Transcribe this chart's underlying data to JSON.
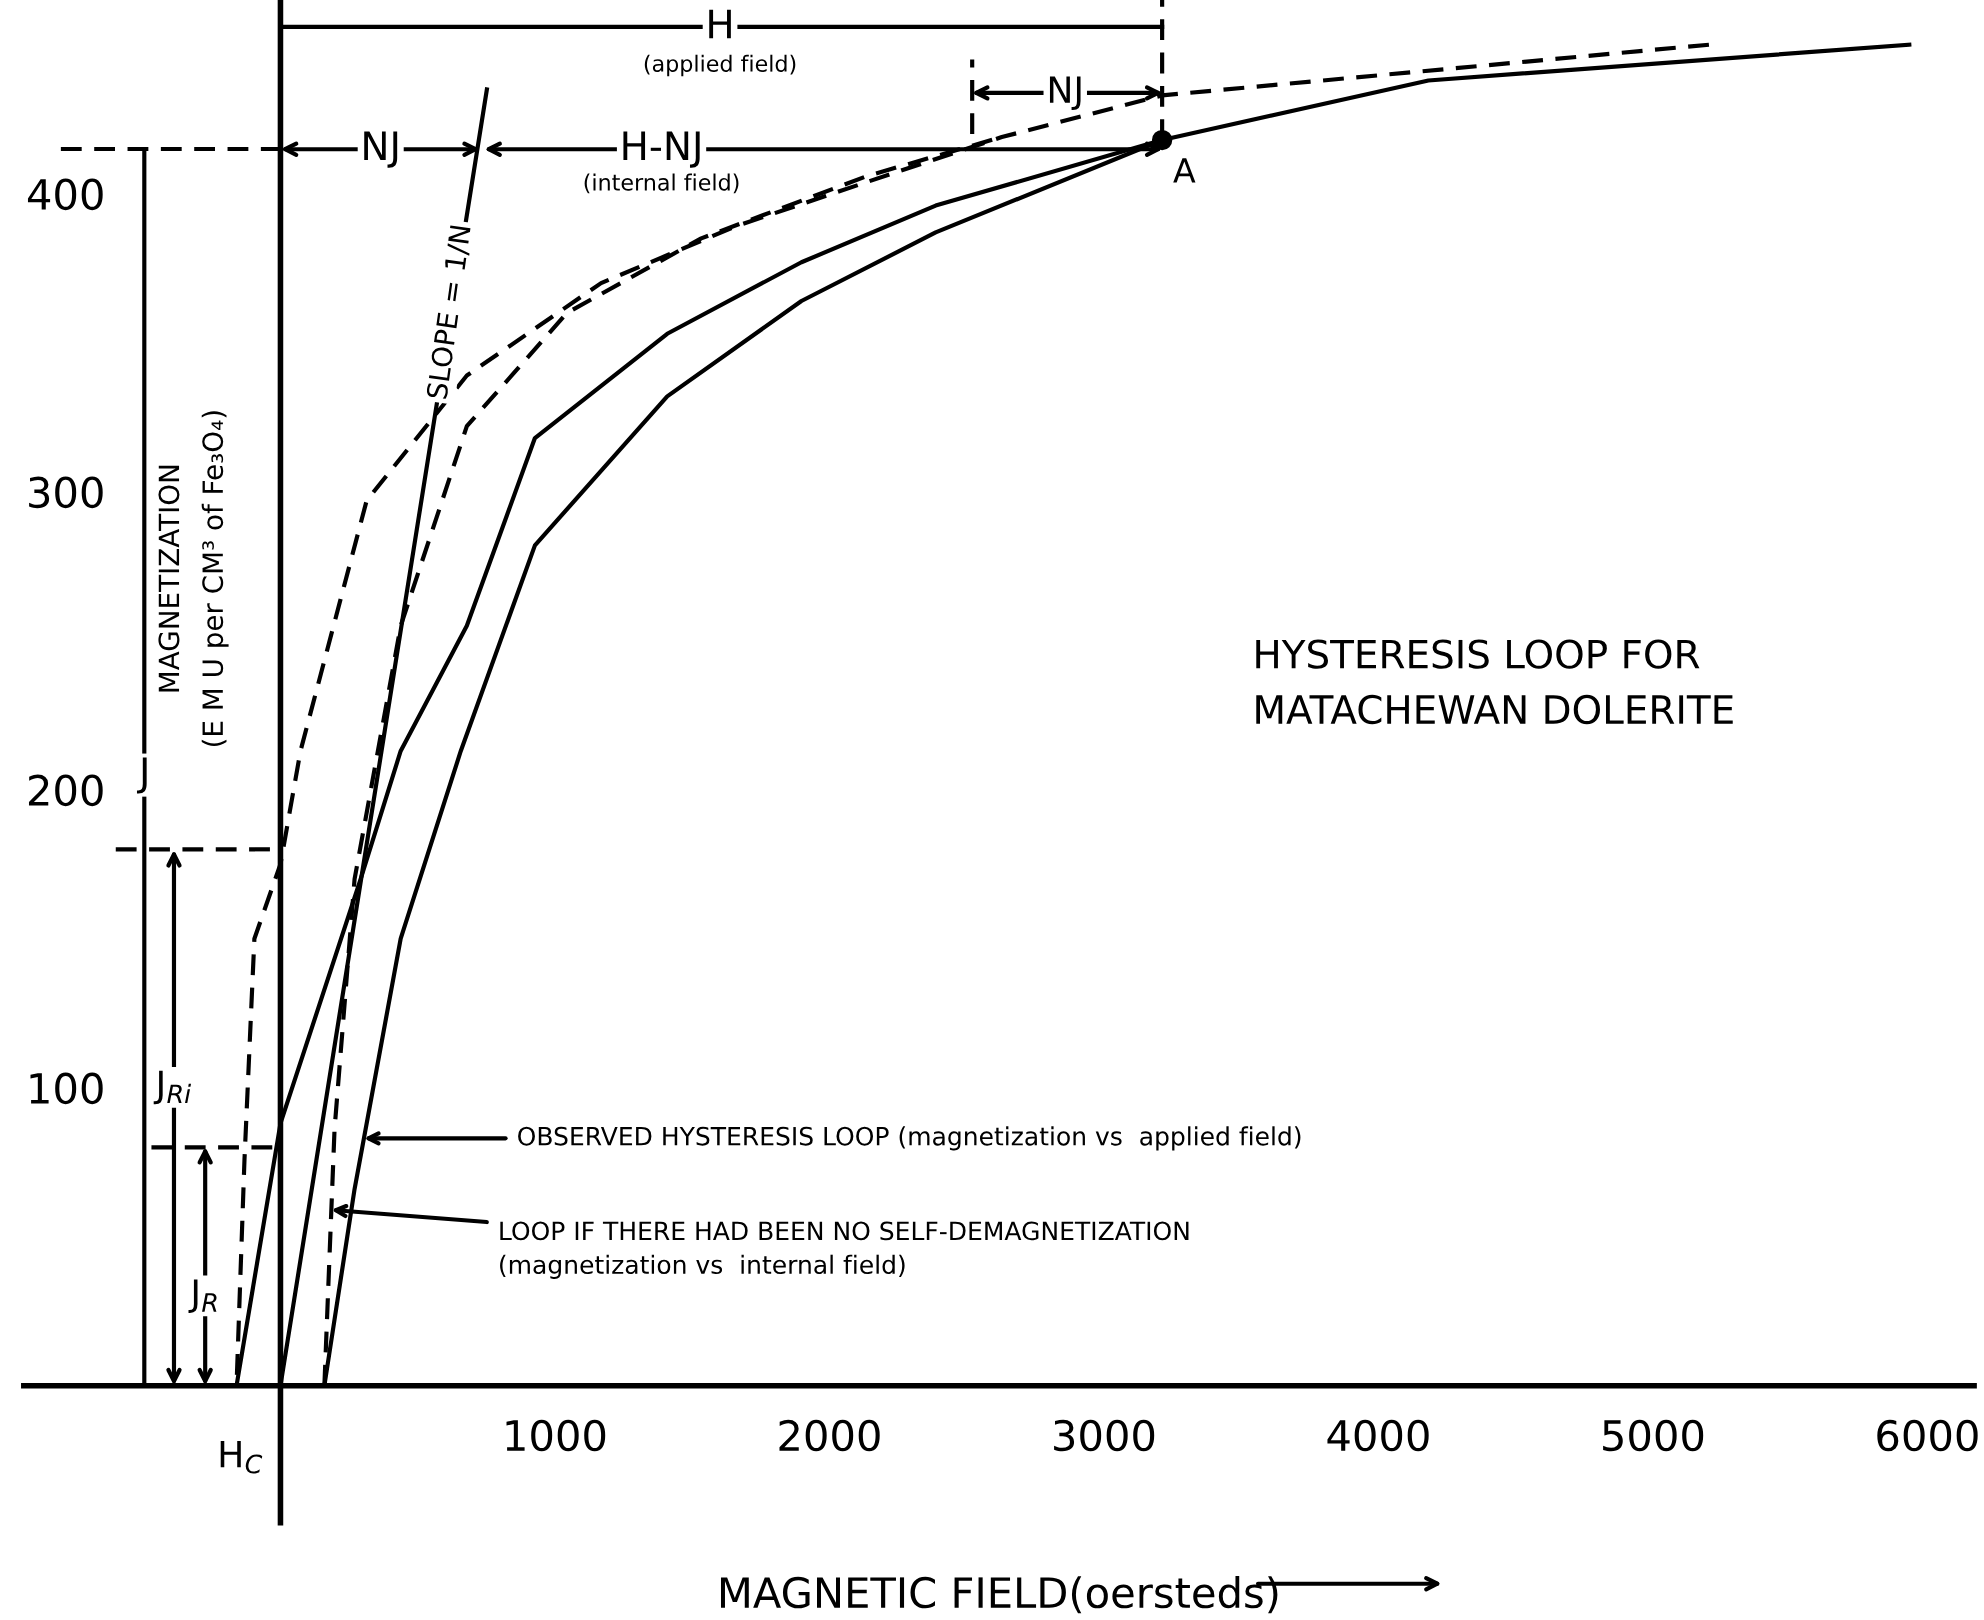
{
  "chart_data": {
    "type": "line",
    "title": "HYSTERESIS LOOP FOR\nMATACHEWAN DOLERITE",
    "xlabel": "MAGNETIC FIELD(oersteds)",
    "ylabel": "MAGNETIZATION\n(E M U per CM³ of Fe₃O₄)",
    "xlim": [
      -935,
      6170
    ],
    "ylim": [
      -46,
      465
    ],
    "xticks": [
      1000,
      2000,
      3000,
      4000,
      5000,
      6000
    ],
    "yticks": [
      100,
      200,
      300,
      400
    ],
    "grid": false,
    "legend": false,
    "series": [
      {
        "line_style": "solid",
        "color": "#000000",
        "x": [
          5934,
          4182,
          3212,
          2387,
          1898,
          1409,
          927,
          679,
          438,
          292,
          0,
          -160
        ],
        "values": [
          450,
          438,
          418,
          396,
          377,
          353,
          318,
          255,
          213,
          170,
          88,
          0
        ]
      },
      {
        "line_style": "solid",
        "color": "#000000",
        "x": [
          160,
          270,
          438,
          657,
          927,
          1409,
          1898,
          2387,
          3212
        ],
        "values": [
          0,
          66,
          150,
          213,
          282,
          332,
          364,
          387,
          418
        ]
      },
      {
        "line_style": "dashed",
        "color": "#000000",
        "x": [
          5204,
          3212,
          2628,
          2139,
          1657,
          1168,
          679,
          314,
          73,
          0,
          -95,
          -131,
          -160
        ],
        "values": [
          450,
          433,
          419,
          404,
          389,
          370,
          339,
          297,
          213,
          175,
          150,
          76,
          0
        ]
      },
      {
        "line_style": "dashed",
        "color": "#000000",
        "x": [
          160,
          197,
          270,
          438,
          679,
          1044,
          1533,
          2139,
          2628
        ],
        "values": [
          0,
          86,
          170,
          255,
          322,
          360,
          385,
          406,
          419
        ]
      },
      {
        "line_style": "solid",
        "color": "#000000",
        "x": [
          0,
          752
        ],
        "values": [
          0,
          435
        ]
      },
      {
        "type": "line",
        "line_style": "dashed",
        "color": "#000000",
        "x": [
          -800,
          0
        ],
        "values": [
          415,
          415
        ]
      },
      {
        "type": "line",
        "line_style": "solid",
        "color": "#000000",
        "x": [
          0,
          3212
        ],
        "values": [
          456,
          456
        ]
      },
      {
        "type": "line",
        "line_style": "solid",
        "color": "#000000",
        "x": [
          -496,
          -496
        ],
        "values": [
          0,
          415
        ]
      },
      {
        "type": "line",
        "line_style": "dashed",
        "color": "#000000",
        "x": [
          -600,
          0
        ],
        "values": [
          180,
          180
        ]
      },
      {
        "type": "line",
        "line_style": "dashed",
        "color": "#000000",
        "x": [
          -470,
          0
        ],
        "values": [
          80,
          80
        ]
      },
      {
        "type": "line",
        "line_style": "dashed",
        "color": "#000000",
        "x": [
          3212,
          3212
        ],
        "values": [
          418,
          465
        ]
      },
      {
        "type": "line",
        "line_style": "dashed",
        "color": "#000000",
        "x": [
          2520,
          2520
        ],
        "values": [
          420,
          445
        ]
      },
      {
        "type": "scatter",
        "marker": "circle",
        "color": "#000000",
        "x": [
          3212
        ],
        "values": [
          418
        ]
      }
    ],
    "annotations": [
      "H",
      "(applied field)",
      "NJ",
      "H-NJ",
      "(internal field)",
      "NJ",
      {
        "text": "A",
        "x": 3212,
        "y": 418
      },
      "SLOPE = 1/N",
      "J",
      "J$_{Ri}$",
      "J$_{R}$",
      "H$_{C}$",
      {
        "text": "OBSERVED HYSTERESIS LOOP (magnetization vs  applied field)",
        "x": 304,
        "y": 83
      },
      {
        "text": "LOOP IF THERE HAD BEEN NO SELF-DEMAGNETIZATION\n(magnetization vs  internal field)",
        "x": 185,
        "y": 59
      }
    ]
  }
}
